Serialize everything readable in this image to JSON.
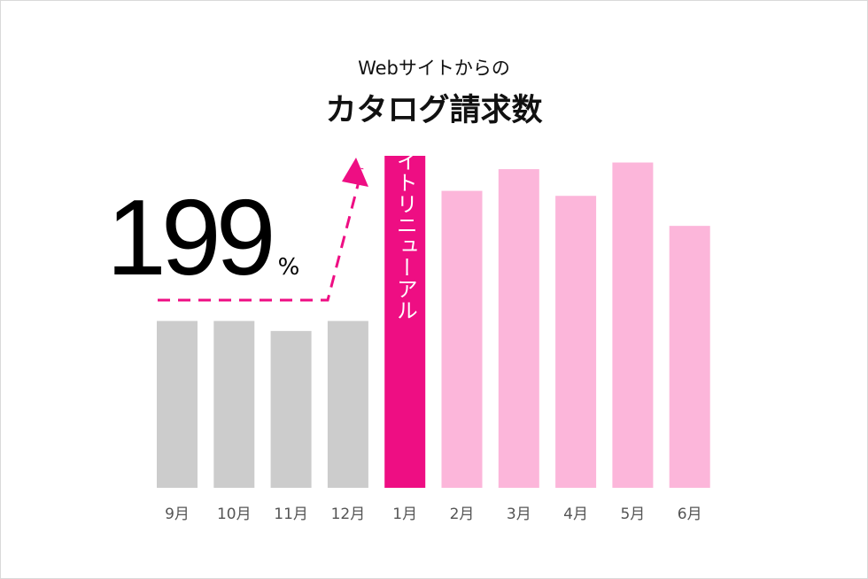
{
  "chart_data": {
    "type": "bar",
    "subtitle": "Webサイトからの",
    "title": "カタログ請求数",
    "categories": [
      "9月",
      "10月",
      "11月",
      "12月",
      "1月",
      "2月",
      "3月",
      "4月",
      "5月",
      "6月"
    ],
    "values": [
      100,
      100,
      94,
      100,
      199,
      178,
      191,
      175,
      195,
      157
    ],
    "bar_colors": [
      "#cccccc",
      "#cccccc",
      "#cccccc",
      "#cccccc",
      "#ee0e83",
      "#fcb6da",
      "#fcb6da",
      "#fcb6da",
      "#fcb6da",
      "#fcb6da"
    ],
    "ylim": [
      0,
      199
    ],
    "grid": false,
    "highlight_label": "サイトリニューアル",
    "annotation": {
      "value": "199",
      "unit": "%"
    }
  },
  "colors": {
    "accent": "#ee0e83",
    "light_accent": "#fcb6da",
    "grey": "#cccccc"
  },
  "icons": {
    "trend_arrow": "dashed-arrow-up-icon"
  }
}
